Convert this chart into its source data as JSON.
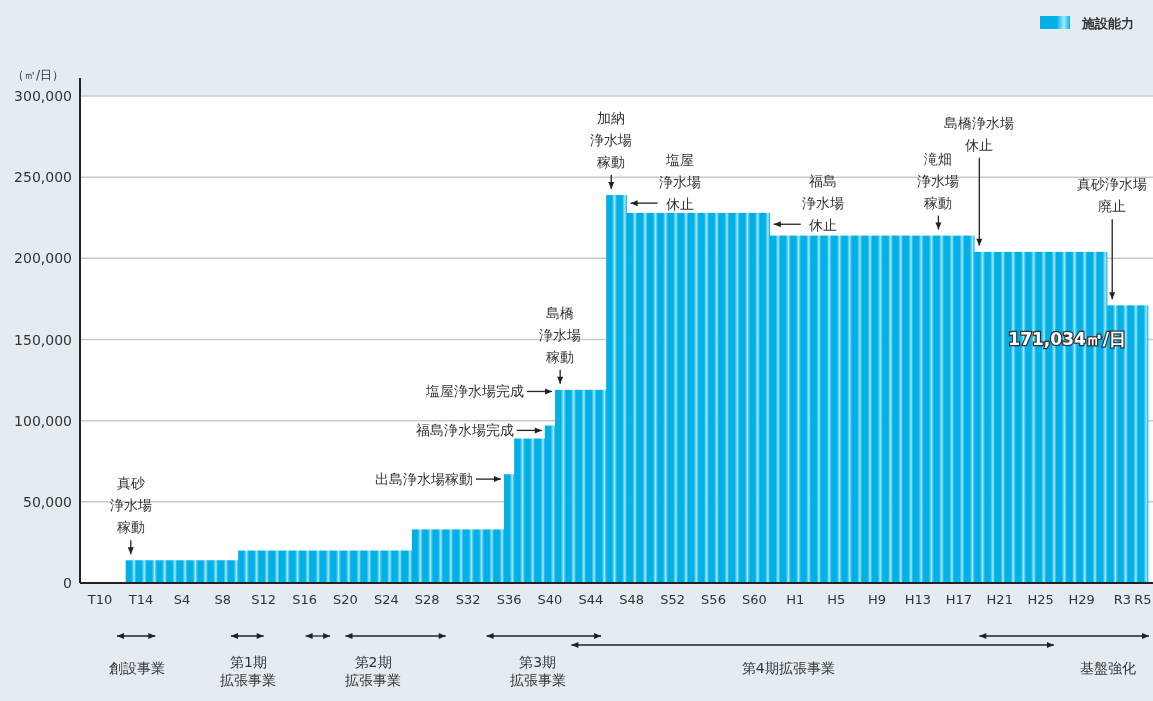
{
  "chart_data": {
    "type": "bar",
    "categories": [
      "T10",
      null,
      null,
      null,
      "T14",
      null,
      null,
      null,
      "S4",
      null,
      null,
      null,
      "S8",
      null,
      null,
      null,
      "S12",
      null,
      null,
      null,
      "S16",
      null,
      null,
      null,
      "S20",
      null,
      null,
      null,
      "S24",
      null,
      null,
      null,
      "S28",
      null,
      null,
      null,
      "S32",
      null,
      null,
      null,
      "S36",
      null,
      null,
      null,
      "S40",
      null,
      null,
      null,
      "S44",
      null,
      null,
      null,
      "S48",
      null,
      null,
      null,
      "S52",
      null,
      null,
      null,
      "S56",
      null,
      null,
      null,
      "S60",
      null,
      null,
      null,
      "H1",
      null,
      null,
      null,
      "H5",
      null,
      null,
      null,
      "H9",
      null,
      null,
      null,
      "H13",
      null,
      null,
      null,
      "H17",
      null,
      null,
      null,
      "H21",
      null,
      null,
      null,
      "H25",
      null,
      null,
      null,
      "H29",
      null,
      null,
      null,
      "R3",
      null,
      "R5"
    ],
    "series": [
      {
        "name": "施設能力",
        "color": "#00b0e6",
        "values": [
          null,
          null,
          null,
          14000,
          14000,
          14000,
          14000,
          14000,
          14000,
          14000,
          14000,
          14000,
          14000,
          14000,
          20000,
          20000,
          20000,
          20000,
          20000,
          20000,
          20000,
          20000,
          20000,
          20000,
          20000,
          20000,
          20000,
          20000,
          20000,
          20000,
          20000,
          33000,
          33000,
          33000,
          33000,
          33000,
          33000,
          33000,
          33000,
          33000,
          67000,
          89000,
          89000,
          89000,
          97000,
          119000,
          119000,
          119000,
          119000,
          119000,
          239000,
          239000,
          228000,
          228000,
          228000,
          228000,
          228000,
          228000,
          228000,
          228000,
          228000,
          228000,
          228000,
          228000,
          228000,
          228000,
          214000,
          214000,
          214000,
          214000,
          214000,
          214000,
          214000,
          214000,
          214000,
          214000,
          214000,
          214000,
          214000,
          214000,
          214000,
          214000,
          214000,
          214000,
          214000,
          214000,
          204000,
          204000,
          204000,
          204000,
          204000,
          204000,
          204000,
          204000,
          204000,
          204000,
          204000,
          204000,
          204000,
          171034,
          171034,
          171034,
          171034
        ]
      }
    ],
    "ylabel": "（㎥/日）",
    "ylim": [
      0,
      300000
    ],
    "yticks": [
      0,
      {
        "value": 50000,
        "label": "50,000"
      },
      {
        "value": 100000,
        "label": "100,000"
      },
      {
        "value": 150000,
        "label": "150,000"
      },
      {
        "value": 200000,
        "label": "200,000"
      },
      {
        "value": 250000,
        "label": "250,000"
      },
      {
        "value": 300000,
        "label": "300,000"
      }
    ],
    "grid": "y",
    "legend": "top right",
    "annotations": [
      "真砂浄水場稼動",
      "出島浄水場稼動",
      "福島浄水場完成",
      "塩屋浄水場完成",
      "島橋浄水場稼動",
      "加納浄水場稼動",
      "塩屋浄水場休止",
      "福島浄水場休止",
      "滝畑浄水場稼動",
      "島橋浄水場休止",
      "真砂浄水場廃止",
      "創設事業",
      "第1期拡張事業",
      "第2期拡張事業",
      "第3期拡張事業",
      "第4期拡張事業",
      "基盤強化",
      "171,034㎥/日"
    ]
  }
}
